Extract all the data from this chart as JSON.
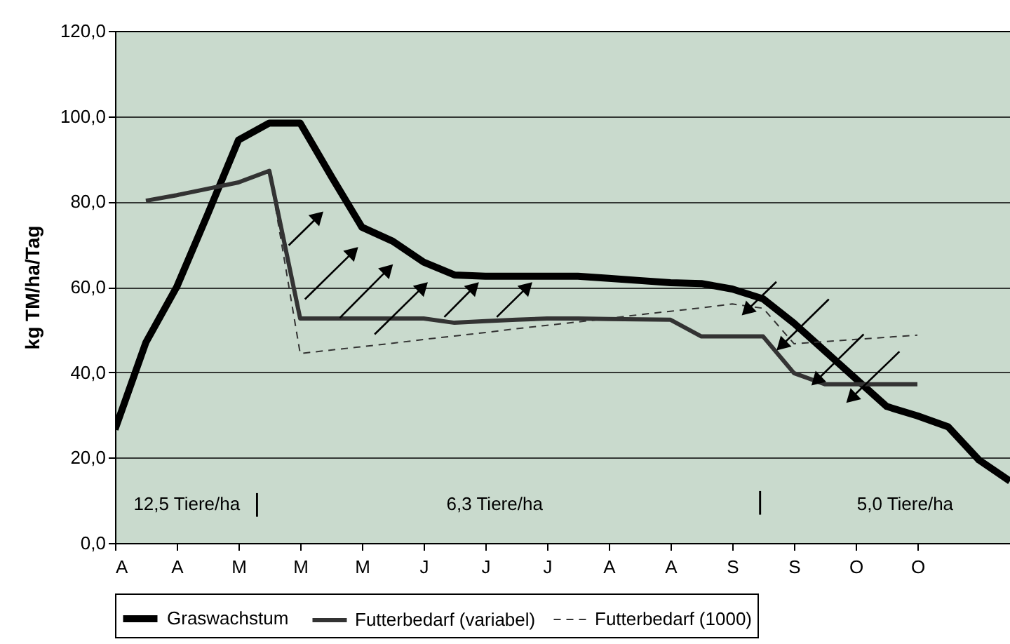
{
  "chart_data": {
    "type": "line",
    "ylabel": "kg TM/ha/Tag",
    "categories": [
      "A",
      null,
      "A",
      null,
      "M",
      null,
      "M",
      null,
      "M",
      null,
      "J",
      null,
      "J",
      null,
      "J",
      null,
      "A",
      null,
      "A",
      null,
      "S",
      null,
      "S",
      null,
      "O",
      null,
      "O",
      null,
      null,
      null
    ],
    "ylim": [
      0,
      120
    ],
    "yticks": [
      {
        "value": 0,
        "label": "0,0"
      },
      {
        "value": 20,
        "label": "20,0"
      },
      {
        "value": 40,
        "label": "40,0"
      },
      {
        "value": 60,
        "label": "60,0"
      },
      {
        "value": 80,
        "label": "80,0"
      },
      {
        "value": 100,
        "label": "100,0"
      },
      {
        "value": 120,
        "label": "120,0"
      }
    ],
    "grid": "y",
    "legend": "bottom",
    "marker": "none",
    "series": [
      {
        "name": "Graswachstum",
        "color": "#000000",
        "line_style": "solid",
        "values": [
          26.6,
          47,
          60,
          77,
          94.4,
          98.4,
          98.4,
          86,
          74,
          70.7,
          65.8,
          62.8,
          62.5,
          62.5,
          62.5,
          62.5,
          62,
          61.5,
          61,
          60.8,
          59.5,
          57.2,
          51.5,
          45,
          38.5,
          32,
          29.8,
          27.2,
          19.4,
          14.5
        ]
      },
      {
        "name": "Futterbedarf (variabel)",
        "color": "#333333",
        "line_style": "solid",
        "values": [
          null,
          80.2,
          81.5,
          83,
          84.5,
          87.2,
          52.6,
          52.6,
          52.6,
          52.6,
          52.6,
          51.6,
          52,
          52.3,
          52.6,
          52.6,
          52.5,
          52.4,
          52.3,
          48.4,
          48.4,
          48.4,
          39.8,
          37.2,
          37.2,
          37.2,
          37.2,
          null,
          null,
          null
        ]
      },
      {
        "name": "Futterbedarf (1000)",
        "color": "#333333",
        "line_style": "dashed",
        "values": [
          null,
          80.2,
          81.5,
          83,
          84.5,
          87.2,
          44.4,
          45.2,
          46,
          46.8,
          47.7,
          48.5,
          49.3,
          50.2,
          51,
          51.8,
          52.6,
          53.5,
          54.3,
          55.1,
          56,
          55,
          46.7,
          47.2,
          47.7,
          48.2,
          48.7,
          null,
          null,
          null
        ]
      }
    ],
    "annotations": [
      "12,5 Tiere/ha",
      "|",
      "6,3 Tiere/ha",
      "|",
      "5,0 Tiere/ha"
    ]
  }
}
